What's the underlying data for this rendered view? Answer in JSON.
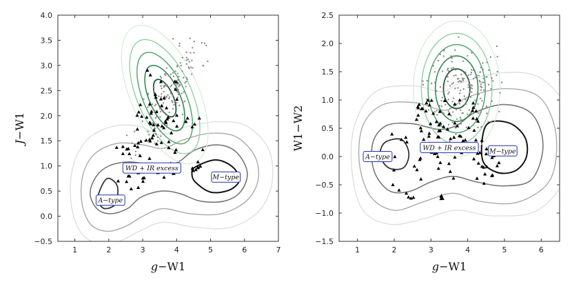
{
  "chart_data": [
    {
      "type": "scatter",
      "panel": "left",
      "xlabel": {
        "italic": "g",
        "rest": "−W1"
      },
      "ylabel": {
        "italic": "J",
        "rest": "−W1"
      },
      "xlim": [
        0.5,
        7
      ],
      "ylim": [
        -0.5,
        4.0
      ],
      "xticks": [
        "1",
        "2",
        "3",
        "4",
        "5",
        "6",
        "7"
      ],
      "yticks": [
        "−0.5",
        "0.0",
        "0.5",
        "1.0",
        "1.5",
        "2.0",
        "2.5",
        "3.0",
        "3.5",
        "4.0"
      ],
      "annotations": [
        {
          "text": "A−type",
          "x": 2.05,
          "y": 0.32
        },
        {
          "text": "WD + IR excess",
          "x": 3.27,
          "y": 0.96
        },
        {
          "text": "M−type",
          "x": 5.45,
          "y": 0.78
        }
      ],
      "contours": {
        "green": [
          {
            "cx": 3.65,
            "cy": 2.35,
            "sx": 0.25,
            "sy": 0.4,
            "color": "#1f5a35",
            "width": 1.8
          },
          {
            "cx": 3.65,
            "cy": 2.35,
            "sx": 0.45,
            "sy": 0.7,
            "color": "#2f8a4f",
            "width": 1.6
          },
          {
            "cx": 3.65,
            "cy": 2.35,
            "sx": 0.62,
            "sy": 0.98,
            "color": "#50a86b",
            "width": 1.5
          },
          {
            "cx": 3.65,
            "cy": 2.38,
            "sx": 0.8,
            "sy": 1.22,
            "color": "#92d19f",
            "width": 1.4
          },
          {
            "cx": 3.65,
            "cy": 2.42,
            "sx": 1.0,
            "sy": 1.48,
            "color": "#d4ecd7",
            "width": 1.2
          }
        ],
        "grey": [
          {
            "points": [
              [
                4.55,
                0.98
              ],
              [
                5.15,
                1.12
              ],
              [
                5.65,
                0.98
              ],
              [
                5.85,
                0.72
              ],
              [
                5.55,
                0.52
              ],
              [
                5.0,
                0.48
              ],
              [
                4.55,
                0.68
              ],
              [
                4.45,
                0.85
              ]
            ],
            "color": "#111111",
            "width": 2.0
          },
          {
            "points": [
              [
                1.7,
                0.45
              ],
              [
                1.95,
                0.75
              ],
              [
                2.25,
                0.6
              ],
              [
                2.2,
                0.25
              ],
              [
                1.9,
                0.15
              ],
              [
                1.72,
                0.25
              ]
            ],
            "color": "#333333",
            "width": 1.8
          },
          {
            "points": [
              [
                4.1,
                1.1
              ],
              [
                4.55,
                1.32
              ],
              [
                5.2,
                1.42
              ],
              [
                5.75,
                1.28
              ],
              [
                6.08,
                0.88
              ],
              [
                5.9,
                0.5
              ],
              [
                5.4,
                0.3
              ],
              [
                4.7,
                0.3
              ],
              [
                4.1,
                0.45
              ],
              [
                3.55,
                0.5
              ],
              [
                2.95,
                0.38
              ],
              [
                2.55,
                0.15
              ],
              [
                2.05,
                0.05
              ],
              [
                1.65,
                0.15
              ],
              [
                1.45,
                0.45
              ],
              [
                1.62,
                0.78
              ],
              [
                2.0,
                1.0
              ],
              [
                2.6,
                1.08
              ],
              [
                3.3,
                1.02
              ],
              [
                3.8,
                1.02
              ]
            ],
            "color": "#777777",
            "width": 1.6
          },
          {
            "points": [
              [
                3.6,
                1.35
              ],
              [
                4.2,
                1.52
              ],
              [
                5.0,
                1.65
              ],
              [
                5.75,
                1.58
              ],
              [
                6.3,
                1.2
              ],
              [
                6.4,
                0.72
              ],
              [
                6.05,
                0.3
              ],
              [
                5.3,
                0.05
              ],
              [
                4.4,
                0.05
              ],
              [
                3.6,
                0.15
              ],
              [
                3.0,
                0.0
              ],
              [
                2.5,
                -0.2
              ],
              [
                1.95,
                -0.3
              ],
              [
                1.45,
                -0.15
              ],
              [
                1.2,
                0.3
              ],
              [
                1.25,
                0.85
              ],
              [
                1.6,
                1.25
              ],
              [
                2.25,
                1.45
              ],
              [
                3.0,
                1.42
              ]
            ],
            "color": "#aaaaaa",
            "width": 1.4
          },
          {
            "points": [
              [
                3.5,
                1.62
              ],
              [
                4.3,
                1.78
              ],
              [
                5.2,
                1.88
              ],
              [
                6.05,
                1.8
              ],
              [
                6.7,
                1.35
              ],
              [
                6.82,
                0.7
              ],
              [
                6.45,
                0.12
              ],
              [
                5.6,
                -0.22
              ],
              [
                4.55,
                -0.22
              ],
              [
                3.6,
                -0.12
              ],
              [
                2.9,
                -0.3
              ],
              [
                2.3,
                -0.5
              ],
              [
                1.7,
                -0.55
              ],
              [
                1.15,
                -0.3
              ],
              [
                0.88,
                0.3
              ],
              [
                0.95,
                1.0
              ],
              [
                1.4,
                1.55
              ],
              [
                2.2,
                1.8
              ],
              [
                2.95,
                1.78
              ]
            ],
            "color": "#dddddd",
            "width": 1.3
          }
        ]
      },
      "points": {
        "grey_dots": {
          "n": 170,
          "cx": 3.8,
          "cy": 2.45,
          "sx": 0.45,
          "sy": 0.55,
          "rho": 0.75,
          "seed": 11
        },
        "triangles": {
          "n": 95,
          "seed": 23
        }
      }
    },
    {
      "type": "scatter",
      "panel": "right",
      "xlabel": {
        "italic": "g",
        "rest": "−W1"
      },
      "ylabel": {
        "italic": "",
        "rest": "W1−W2"
      },
      "xlim": [
        0.5,
        6.5
      ],
      "ylim": [
        -1.5,
        2.5
      ],
      "xticks": [
        "1",
        "2",
        "3",
        "4",
        "5",
        "6"
      ],
      "yticks": [
        "−1.5",
        "−1.0",
        "−0.5",
        "0.0",
        "0.5",
        "1.0",
        "1.5",
        "2.0",
        "2.5"
      ],
      "annotations": [
        {
          "text": "A−type",
          "x": 1.55,
          "y": 0.0
        },
        {
          "text": "WD + IR excess",
          "x": 3.5,
          "y": 0.16
        },
        {
          "text": "M−type",
          "x": 4.95,
          "y": 0.1
        }
      ],
      "contours": {
        "green": [
          {
            "cx": 3.7,
            "cy": 1.2,
            "sx": 0.36,
            "sy": 0.35,
            "color": "#1f5a35",
            "width": 1.8
          },
          {
            "cx": 3.7,
            "cy": 1.2,
            "sx": 0.58,
            "sy": 0.58,
            "color": "#2f8a4f",
            "width": 1.6
          },
          {
            "cx": 3.7,
            "cy": 1.2,
            "sx": 0.78,
            "sy": 0.78,
            "color": "#50a86b",
            "width": 1.5
          },
          {
            "cx": 3.7,
            "cy": 1.2,
            "sx": 0.96,
            "sy": 0.98,
            "color": "#92d19f",
            "width": 1.4
          },
          {
            "cx": 3.7,
            "cy": 1.2,
            "sx": 1.18,
            "sy": 1.2,
            "color": "#d4ecd7",
            "width": 1.2
          }
        ],
        "grey": [
          {
            "points": [
              [
                4.5,
                0.55
              ],
              [
                5.1,
                0.6
              ],
              [
                5.55,
                0.35
              ],
              [
                5.6,
                0.0
              ],
              [
                5.3,
                -0.25
              ],
              [
                4.8,
                -0.28
              ],
              [
                4.4,
                -0.05
              ]
            ],
            "color": "#111111",
            "width": 2.0
          },
          {
            "points": [
              [
                1.75,
                0.25
              ],
              [
                2.2,
                0.3
              ],
              [
                2.4,
                0.05
              ],
              [
                2.25,
                -0.2
              ],
              [
                1.85,
                -0.2
              ],
              [
                1.62,
                0.02
              ]
            ],
            "color": "#333333",
            "width": 1.8
          },
          {
            "points": [
              [
                4.2,
                0.78
              ],
              [
                5.0,
                0.92
              ],
              [
                5.75,
                0.75
              ],
              [
                6.05,
                0.2
              ],
              [
                5.75,
                -0.4
              ],
              [
                5.0,
                -0.52
              ],
              [
                4.25,
                -0.45
              ],
              [
                3.6,
                -0.35
              ],
              [
                3.0,
                -0.45
              ],
              [
                2.4,
                -0.62
              ],
              [
                1.85,
                -0.6
              ],
              [
                1.45,
                -0.25
              ],
              [
                1.42,
                0.25
              ],
              [
                1.8,
                0.55
              ],
              [
                2.5,
                0.58
              ],
              [
                3.2,
                0.48
              ],
              [
                3.7,
                0.55
              ]
            ],
            "color": "#777777",
            "width": 1.6
          },
          {
            "points": [
              [
                4.0,
                1.05
              ],
              [
                5.0,
                1.2
              ],
              [
                5.95,
                1.05
              ],
              [
                6.4,
                0.4
              ],
              [
                6.25,
                -0.4
              ],
              [
                5.4,
                -0.8
              ],
              [
                4.4,
                -0.8
              ],
              [
                3.6,
                -0.65
              ],
              [
                2.8,
                -0.8
              ],
              [
                2.0,
                -0.95
              ],
              [
                1.35,
                -0.7
              ],
              [
                1.05,
                -0.1
              ],
              [
                1.15,
                0.55
              ],
              [
                1.7,
                0.92
              ],
              [
                2.6,
                0.95
              ],
              [
                3.4,
                0.82
              ]
            ],
            "color": "#aaaaaa",
            "width": 1.4
          },
          {
            "points": [
              [
                3.8,
                1.3
              ],
              [
                4.9,
                1.48
              ],
              [
                6.0,
                1.38
              ],
              [
                6.8,
                0.7
              ],
              [
                6.7,
                -0.3
              ],
              [
                5.9,
                -0.95
              ],
              [
                4.7,
                -1.05
              ],
              [
                3.7,
                -0.95
              ],
              [
                2.8,
                -1.1
              ],
              [
                1.9,
                -1.2
              ],
              [
                1.15,
                -0.95
              ],
              [
                0.85,
                -0.25
              ],
              [
                0.92,
                0.55
              ],
              [
                1.5,
                1.15
              ],
              [
                2.5,
                1.25
              ],
              [
                3.3,
                1.15
              ]
            ],
            "color": "#dddddd",
            "width": 1.3
          }
        ]
      },
      "points": {
        "grey_dots": {
          "n": 175,
          "cx": 3.85,
          "cy": 1.2,
          "sx": 0.45,
          "sy": 0.38,
          "rho": 0.1,
          "seed": 37
        },
        "triangles": {
          "n": 105,
          "seed": 51
        }
      }
    }
  ]
}
